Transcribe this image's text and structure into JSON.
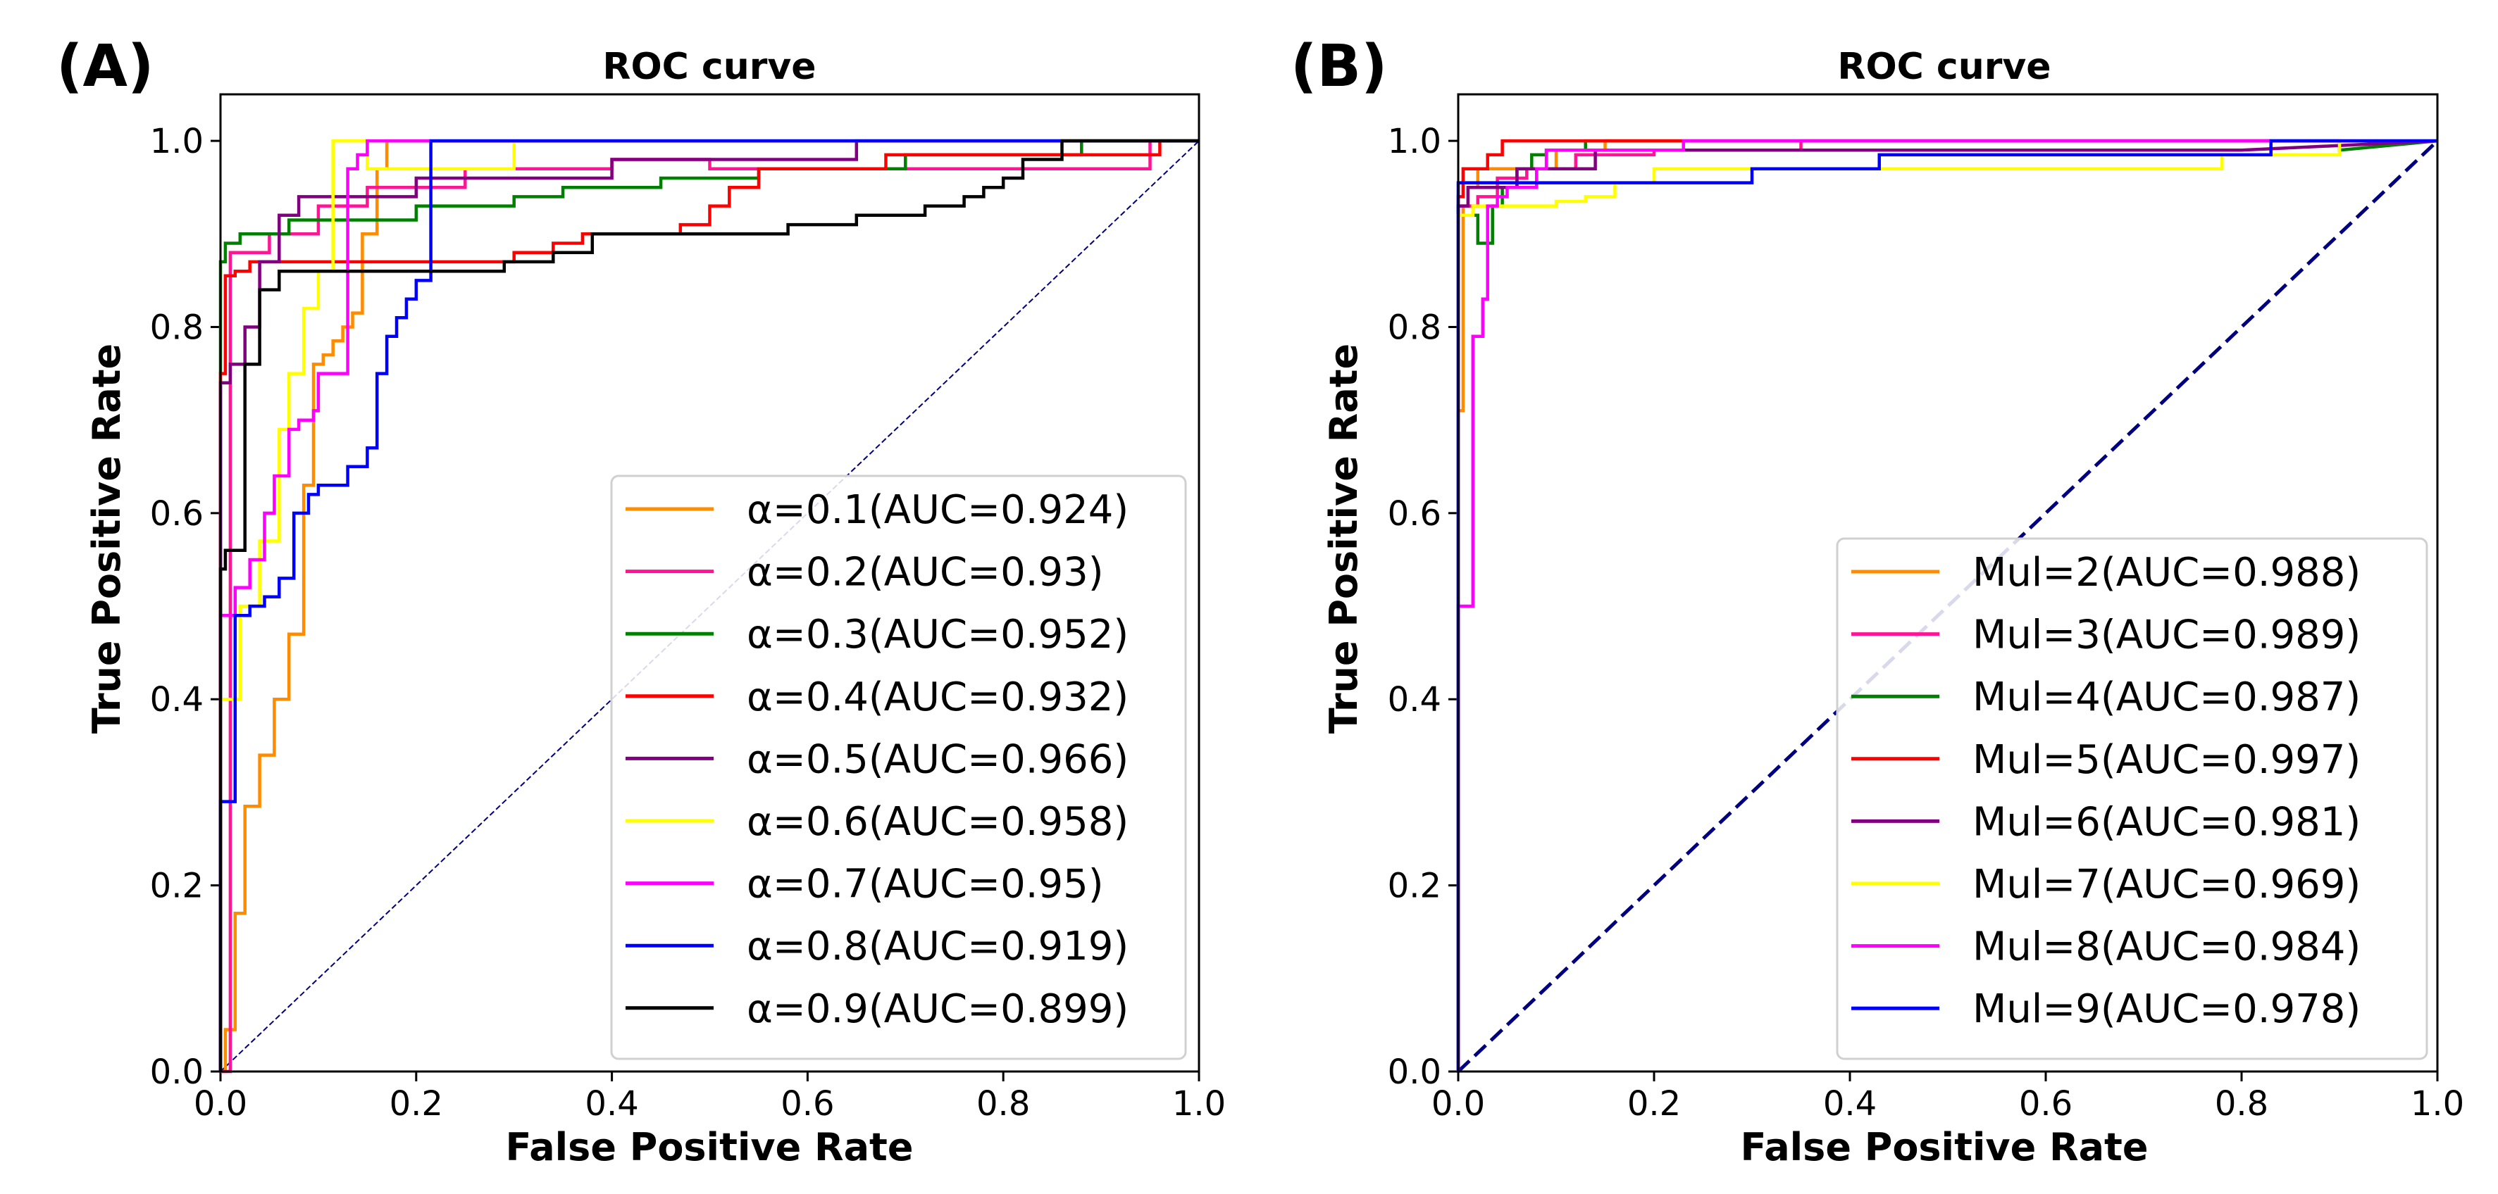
{
  "charts": [
    {
      "panel_label": "(A)",
      "title": "ROC curve",
      "xlabel": "False Positive Rate",
      "ylabel": "True Positive Rate",
      "xticks": [
        "0.0",
        "0.2",
        "0.4",
        "0.6",
        "0.8",
        "1.0"
      ],
      "yticks": [
        "0.0",
        "0.2",
        "0.4",
        "0.6",
        "0.8",
        "1.0"
      ],
      "diag_style": "thin-dashed",
      "legend": [
        "α=0.1(AUC=0.924)",
        "α=0.2(AUC=0.93)",
        "α=0.3(AUC=0.952)",
        "α=0.4(AUC=0.932)",
        "α=0.5(AUC=0.966)",
        "α=0.6(AUC=0.958)",
        "α=0.7(AUC=0.95)",
        "α=0.8(AUC=0.919)",
        "α=0.9(AUC=0.899)"
      ]
    },
    {
      "panel_label": "(B)",
      "title": "ROC curve",
      "xlabel": "False Positive Rate",
      "ylabel": "True Positive Rate",
      "xticks": [
        "0.0",
        "0.2",
        "0.4",
        "0.6",
        "0.8",
        "1.0"
      ],
      "yticks": [
        "0.0",
        "0.2",
        "0.4",
        "0.6",
        "0.8",
        "1.0"
      ],
      "diag_style": "thick-dashed",
      "legend": [
        "Mul=2(AUC=0.988)",
        "Mul=3(AUC=0.989)",
        "Mul=4(AUC=0.987)",
        "Mul=5(AUC=0.997)",
        "Mul=6(AUC=0.981)",
        "Mul=7(AUC=0.969)",
        "Mul=8(AUC=0.984)",
        "Mul=9(AUC=0.978)"
      ]
    }
  ],
  "chart_data": [
    {
      "type": "line",
      "title": "ROC curve",
      "xlabel": "False Positive Rate",
      "ylabel": "True Positive Rate",
      "xlim": [
        0,
        1.0
      ],
      "ylim": [
        0,
        1.05
      ],
      "legend_position": "lower-right",
      "diagonal": {
        "color": "#000080",
        "style": "dashed"
      },
      "series": [
        {
          "name": "α=0.1(AUC=0.924)",
          "color": "#ff8c00",
          "x": [
            0,
            0.005,
            0.005,
            0.015,
            0.015,
            0.025,
            0.025,
            0.04,
            0.04,
            0.055,
            0.055,
            0.07,
            0.07,
            0.085,
            0.085,
            0.095,
            0.095,
            0.105,
            0.105,
            0.115,
            0.115,
            0.125,
            0.125,
            0.135,
            0.135,
            0.145,
            0.145,
            0.16,
            0.16,
            0.17,
            0.17,
            1.0
          ],
          "y": [
            0,
            0,
            0.045,
            0.045,
            0.17,
            0.17,
            0.285,
            0.285,
            0.34,
            0.34,
            0.4,
            0.4,
            0.47,
            0.47,
            0.63,
            0.63,
            0.76,
            0.76,
            0.77,
            0.77,
            0.785,
            0.785,
            0.8,
            0.8,
            0.815,
            0.815,
            0.9,
            0.9,
            0.97,
            0.97,
            1.0,
            1.0
          ]
        },
        {
          "name": "α=0.2(AUC=0.93)",
          "color": "#ff1493",
          "x": [
            0,
            0.01,
            0.01,
            0.05,
            0.05,
            0.1,
            0.1,
            0.15,
            0.15,
            0.25,
            0.25,
            0.4,
            0.4,
            0.5,
            0.5,
            0.95,
            0.95,
            1.0
          ],
          "y": [
            0,
            0,
            0.88,
            0.88,
            0.9,
            0.9,
            0.93,
            0.93,
            0.95,
            0.95,
            0.97,
            0.97,
            0.98,
            0.98,
            0.97,
            0.97,
            1.0,
            1.0
          ]
        },
        {
          "name": "α=0.3(AUC=0.952)",
          "color": "#008000",
          "x": [
            0,
            0.0,
            0.005,
            0.005,
            0.02,
            0.02,
            0.07,
            0.07,
            0.2,
            0.2,
            0.3,
            0.3,
            0.35,
            0.35,
            0.45,
            0.45,
            0.55,
            0.55,
            0.7,
            0.7,
            0.88,
            0.88,
            1.0
          ],
          "y": [
            0,
            0.87,
            0.87,
            0.89,
            0.89,
            0.9,
            0.9,
            0.915,
            0.915,
            0.93,
            0.93,
            0.94,
            0.94,
            0.95,
            0.95,
            0.96,
            0.96,
            0.97,
            0.97,
            0.985,
            0.985,
            1.0,
            1.0
          ]
        },
        {
          "name": "α=0.4(AUC=0.932)",
          "color": "#ff0000",
          "x": [
            0,
            0.0,
            0.005,
            0.005,
            0.015,
            0.015,
            0.03,
            0.03,
            0.3,
            0.3,
            0.34,
            0.34,
            0.37,
            0.37,
            0.47,
            0.47,
            0.5,
            0.5,
            0.52,
            0.52,
            0.55,
            0.55,
            0.68,
            0.68,
            0.96,
            0.96,
            1.0
          ],
          "y": [
            0,
            0.75,
            0.75,
            0.855,
            0.855,
            0.86,
            0.86,
            0.87,
            0.87,
            0.88,
            0.88,
            0.89,
            0.89,
            0.9,
            0.9,
            0.91,
            0.91,
            0.93,
            0.93,
            0.95,
            0.95,
            0.97,
            0.97,
            0.985,
            0.985,
            1.0,
            1.0
          ]
        },
        {
          "name": "α=0.5(AUC=0.966)",
          "color": "#800080",
          "x": [
            0,
            0.0,
            0.01,
            0.01,
            0.025,
            0.025,
            0.04,
            0.04,
            0.06,
            0.06,
            0.08,
            0.08,
            0.2,
            0.2,
            0.4,
            0.4,
            0.65,
            0.65,
            1.0
          ],
          "y": [
            0,
            0.74,
            0.74,
            0.76,
            0.76,
            0.8,
            0.8,
            0.87,
            0.87,
            0.92,
            0.92,
            0.94,
            0.94,
            0.96,
            0.96,
            0.98,
            0.98,
            1.0,
            1.0
          ]
        },
        {
          "name": "α=0.6(AUC=0.958)",
          "color": "#ffff00",
          "x": [
            0,
            0.0,
            0.02,
            0.02,
            0.04,
            0.04,
            0.06,
            0.06,
            0.07,
            0.07,
            0.085,
            0.085,
            0.1,
            0.1,
            0.115,
            0.115,
            0.15,
            0.15,
            0.3,
            0.3,
            1.0
          ],
          "y": [
            0,
            0.4,
            0.4,
            0.5,
            0.5,
            0.57,
            0.57,
            0.69,
            0.69,
            0.75,
            0.75,
            0.82,
            0.82,
            0.86,
            0.86,
            1.0,
            1.0,
            0.97,
            0.97,
            1.0,
            1.0
          ]
        },
        {
          "name": "α=0.7(AUC=0.95)",
          "color": "#ff00ff",
          "x": [
            0,
            0.0,
            0.015,
            0.015,
            0.03,
            0.03,
            0.045,
            0.045,
            0.055,
            0.055,
            0.07,
            0.07,
            0.08,
            0.08,
            0.095,
            0.095,
            0.1,
            0.1,
            0.13,
            0.13,
            0.14,
            0.14,
            0.15,
            0.15,
            1.0
          ],
          "y": [
            0,
            0.49,
            0.49,
            0.52,
            0.52,
            0.55,
            0.55,
            0.6,
            0.6,
            0.64,
            0.64,
            0.69,
            0.69,
            0.7,
            0.7,
            0.71,
            0.71,
            0.75,
            0.75,
            0.97,
            0.97,
            0.985,
            0.985,
            1.0,
            1.0
          ]
        },
        {
          "name": "α=0.8(AUC=0.919)",
          "color": "#0000ff",
          "x": [
            0,
            0.0,
            0.015,
            0.015,
            0.03,
            0.03,
            0.045,
            0.045,
            0.06,
            0.06,
            0.075,
            0.075,
            0.09,
            0.09,
            0.1,
            0.1,
            0.13,
            0.13,
            0.15,
            0.15,
            0.16,
            0.16,
            0.17,
            0.17,
            0.18,
            0.18,
            0.19,
            0.19,
            0.2,
            0.2,
            0.215,
            0.215,
            1.0
          ],
          "y": [
            0,
            0.29,
            0.29,
            0.49,
            0.49,
            0.5,
            0.5,
            0.51,
            0.51,
            0.53,
            0.53,
            0.6,
            0.6,
            0.62,
            0.62,
            0.63,
            0.63,
            0.65,
            0.65,
            0.67,
            0.67,
            0.75,
            0.75,
            0.79,
            0.79,
            0.81,
            0.81,
            0.83,
            0.83,
            0.85,
            0.85,
            1.0,
            1.0
          ]
        },
        {
          "name": "α=0.9(AUC=0.899)",
          "color": "#000000",
          "x": [
            0,
            0.0,
            0.005,
            0.005,
            0.025,
            0.025,
            0.04,
            0.04,
            0.06,
            0.06,
            0.29,
            0.29,
            0.34,
            0.34,
            0.38,
            0.38,
            0.58,
            0.58,
            0.65,
            0.65,
            0.72,
            0.72,
            0.76,
            0.76,
            0.78,
            0.78,
            0.8,
            0.8,
            0.82,
            0.82,
            0.86,
            0.86,
            1.0
          ],
          "y": [
            0,
            0.54,
            0.54,
            0.56,
            0.56,
            0.76,
            0.76,
            0.84,
            0.84,
            0.86,
            0.86,
            0.87,
            0.87,
            0.88,
            0.88,
            0.9,
            0.9,
            0.91,
            0.91,
            0.92,
            0.92,
            0.93,
            0.93,
            0.94,
            0.94,
            0.95,
            0.95,
            0.96,
            0.96,
            0.98,
            0.98,
            1.0,
            1.0
          ]
        }
      ]
    },
    {
      "type": "line",
      "title": "ROC curve",
      "xlabel": "False Positive Rate",
      "ylabel": "True Positive Rate",
      "xlim": [
        0,
        1.0
      ],
      "ylim": [
        0,
        1.05
      ],
      "legend_position": "lower-right",
      "diagonal": {
        "color": "#000080",
        "style": "dashed"
      },
      "series": [
        {
          "name": "Mul=2(AUC=0.988)",
          "color": "#ff8c00",
          "x": [
            0,
            0.0,
            0.005,
            0.005,
            0.01,
            0.01,
            0.02,
            0.02,
            0.1,
            0.1,
            0.15,
            0.15,
            0.3,
            0.3,
            1.0
          ],
          "y": [
            0,
            0.71,
            0.71,
            0.93,
            0.93,
            0.95,
            0.95,
            0.97,
            0.97,
            0.99,
            0.99,
            1.0,
            1.0,
            1.0,
            1.0
          ]
        },
        {
          "name": "Mul=3(AUC=0.989)",
          "color": "#ff1493",
          "x": [
            0,
            0.0,
            0.02,
            0.02,
            0.04,
            0.04,
            0.07,
            0.07,
            0.12,
            0.12,
            0.2,
            0.2,
            0.35,
            0.35,
            1.0
          ],
          "y": [
            0,
            0.93,
            0.93,
            0.94,
            0.94,
            0.96,
            0.96,
            0.97,
            0.97,
            0.985,
            0.985,
            0.99,
            0.99,
            1.0,
            1.0
          ]
        },
        {
          "name": "Mul=4(AUC=0.987)",
          "color": "#008000",
          "x": [
            0,
            0.0,
            0.02,
            0.02,
            0.035,
            0.035,
            0.045,
            0.045,
            0.06,
            0.06,
            0.075,
            0.075,
            0.09,
            0.09,
            0.13,
            0.13,
            0.9,
            0.9,
            1.0
          ],
          "y": [
            0,
            0.92,
            0.92,
            0.89,
            0.89,
            0.93,
            0.93,
            0.95,
            0.95,
            0.97,
            0.97,
            0.985,
            0.985,
            0.99,
            0.99,
            1.0,
            1.0,
            0.99,
            1.0
          ]
        },
        {
          "name": "Mul=5(AUC=0.997)",
          "color": "#ff0000",
          "x": [
            0,
            0.0,
            0.005,
            0.005,
            0.03,
            0.03,
            0.045,
            0.045,
            1.0
          ],
          "y": [
            0,
            0.94,
            0.94,
            0.97,
            0.97,
            0.985,
            0.985,
            1.0,
            1.0
          ]
        },
        {
          "name": "Mul=6(AUC=0.981)",
          "color": "#800080",
          "x": [
            0,
            0.0,
            0.01,
            0.01,
            0.06,
            0.06,
            0.14,
            0.14,
            0.8,
            0.8,
            1.0
          ],
          "y": [
            0,
            0.93,
            0.93,
            0.95,
            0.95,
            0.97,
            0.97,
            0.99,
            0.99,
            0.99,
            1.0
          ]
        },
        {
          "name": "Mul=7(AUC=0.969)",
          "color": "#ffff00",
          "x": [
            0,
            0.0,
            0.015,
            0.015,
            0.03,
            0.03,
            0.1,
            0.1,
            0.13,
            0.13,
            0.16,
            0.16,
            0.2,
            0.2,
            0.78,
            0.78,
            0.9,
            0.9,
            1.0
          ],
          "y": [
            0,
            0.92,
            0.92,
            0.93,
            0.93,
            0.93,
            0.93,
            0.935,
            0.935,
            0.94,
            0.94,
            0.955,
            0.955,
            0.97,
            0.97,
            0.985,
            0.985,
            1.0,
            1.0
          ]
        },
        {
          "name": "Mul=8(AUC=0.984)",
          "color": "#ff00ff",
          "x": [
            0,
            0.0,
            0.005,
            0.005,
            0.015,
            0.015,
            0.025,
            0.025,
            0.03,
            0.03,
            0.04,
            0.04,
            0.05,
            0.05,
            0.08,
            0.08,
            0.09,
            0.09,
            0.2,
            0.2,
            0.23,
            0.23,
            1.0
          ],
          "y": [
            0,
            0.5,
            0.5,
            0.5,
            0.5,
            0.79,
            0.79,
            0.83,
            0.83,
            0.93,
            0.93,
            0.94,
            0.94,
            0.95,
            0.95,
            0.97,
            0.97,
            0.99,
            0.99,
            0.99,
            0.99,
            1.0,
            1.0
          ]
        },
        {
          "name": "Mul=9(AUC=0.978)",
          "color": "#0000ff",
          "x": [
            0,
            0.0,
            0.0,
            0.0,
            0.3,
            0.3,
            0.43,
            0.43,
            0.83,
            0.83,
            1.0
          ],
          "y": [
            0,
            0.0,
            0.955,
            0.955,
            0.955,
            0.97,
            0.97,
            0.985,
            0.985,
            1.0,
            1.0
          ]
        }
      ]
    }
  ]
}
